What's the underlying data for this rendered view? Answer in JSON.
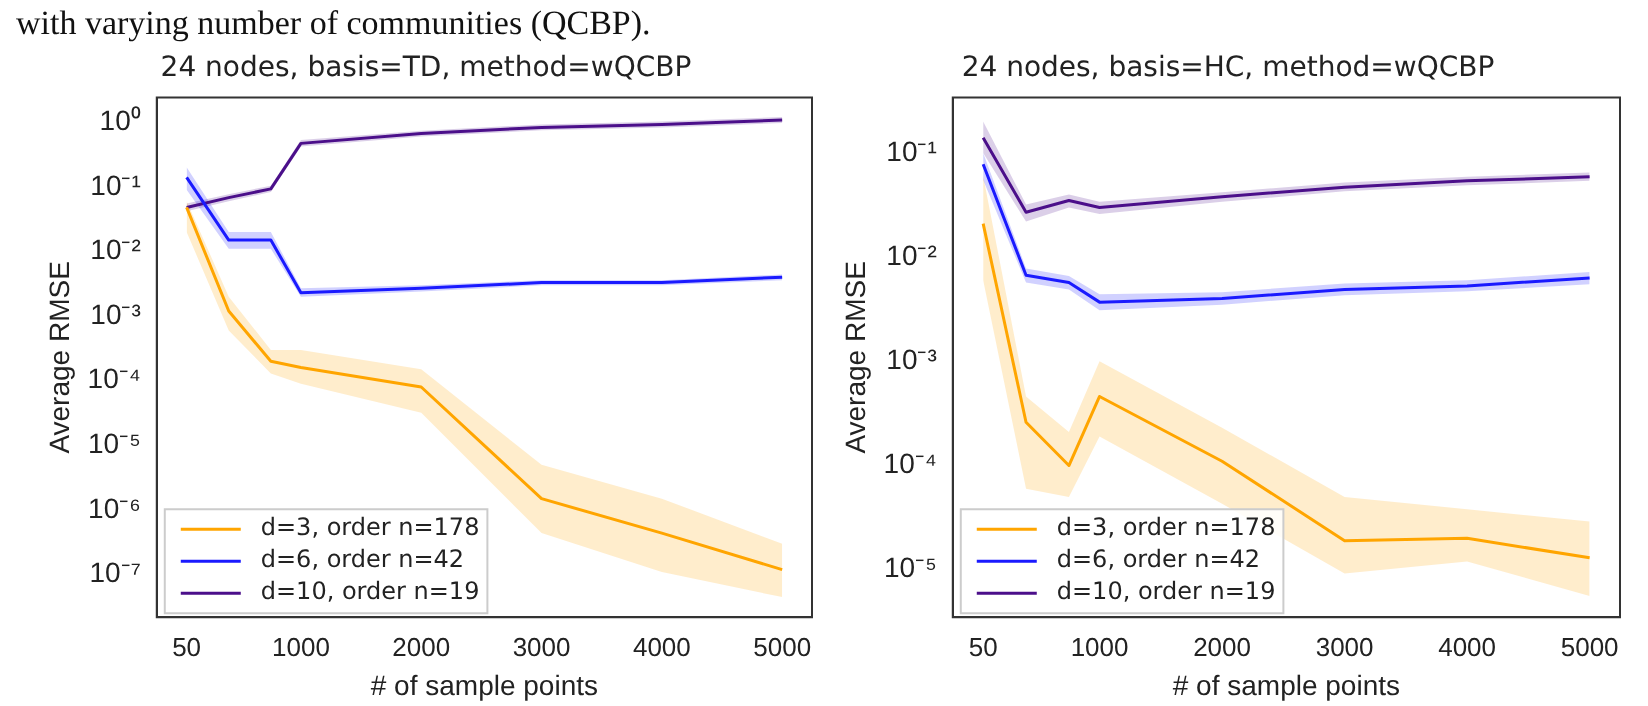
{
  "chart_data": [
    {
      "type": "line",
      "title": "24 nodes, basis=TD, method=wQCBP",
      "xlabel": "# of sample points",
      "ylabel": "Average RMSE",
      "annotations": [
        "with varying number of communities (QCBP)."
      ],
      "log": "y",
      "legend": "bottom left",
      "grid": false,
      "marker": "none",
      "line_style": "solid",
      "x": [
        50,
        400,
        750,
        1000,
        2000,
        3000,
        4000,
        5000
      ],
      "xlim": [
        -198,
        5248
      ],
      "xticks": [
        50,
        1000,
        2000,
        3000,
        4000,
        5000
      ],
      "ylim": [
        2.2e-08,
        2.4
      ],
      "yticks": [
        {
          "value": 1e-07,
          "label": "10⁻⁷"
        },
        {
          "value": 1e-06,
          "label": "10⁻⁶"
        },
        {
          "value": 1e-05,
          "label": "10⁻⁵"
        },
        {
          "value": 0.0001,
          "label": "10⁻⁴"
        },
        {
          "value": 0.001,
          "label": "10⁻³"
        },
        {
          "value": 0.01,
          "label": "10⁻²"
        },
        {
          "value": 0.1,
          "label": "10⁻¹"
        },
        {
          "value": 1,
          "label": "10⁰"
        }
      ],
      "series": [
        {
          "name": "d=3, order n=178",
          "color": "#ffa500",
          "values": [
            0.048,
            0.0012,
            0.0002,
            0.00016,
            8e-05,
            1.5e-06,
            4.4e-07,
            1.2e-07
          ],
          "lower": [
            0.02,
            0.0006,
            0.00013,
            9e-05,
            3.2e-05,
            4.4e-07,
            1.1e-07,
            4.5e-08
          ],
          "upper": [
            0.06,
            0.002,
            0.0003,
            0.0003,
            0.00015,
            5e-06,
            1.5e-06,
            3e-07
          ]
        },
        {
          "name": "d=6, order n=42",
          "color": "#1a1aff",
          "values": [
            0.14,
            0.015,
            0.015,
            0.0023,
            0.0027,
            0.0033,
            0.0033,
            0.004
          ],
          "lower": [
            0.09,
            0.011,
            0.011,
            0.002,
            0.0024,
            0.003,
            0.003,
            0.0036
          ],
          "upper": [
            0.2,
            0.02,
            0.02,
            0.0027,
            0.003,
            0.0036,
            0.0036,
            0.0044
          ]
        },
        {
          "name": "d=10, order n=19",
          "color": "#4b0f8a",
          "values": [
            0.048,
            0.068,
            0.093,
            0.47,
            0.67,
            0.83,
            0.92,
            1.08
          ],
          "lower": [
            0.042,
            0.06,
            0.083,
            0.42,
            0.6,
            0.75,
            0.83,
            0.97
          ],
          "upper": [
            0.055,
            0.077,
            0.104,
            0.53,
            0.74,
            0.92,
            1.02,
            1.2
          ]
        }
      ]
    },
    {
      "type": "line",
      "title": "24 nodes, basis=HC, method=wQCBP",
      "xlabel": "# of sample points",
      "ylabel": "Average RMSE",
      "log": "y",
      "legend": "bottom left",
      "grid": false,
      "marker": "none",
      "line_style": "solid",
      "x": [
        50,
        400,
        750,
        1000,
        2000,
        3000,
        4000,
        5000
      ],
      "xlim": [
        -198,
        5248
      ],
      "xticks": [
        50,
        1000,
        2000,
        3000,
        4000,
        5000
      ],
      "ylim": [
        3.5e-06,
        0.34
      ],
      "yticks": [
        {
          "value": 1e-05,
          "label": "10⁻⁵"
        },
        {
          "value": 0.0001,
          "label": "10⁻⁴"
        },
        {
          "value": 0.001,
          "label": "10⁻³"
        },
        {
          "value": 0.01,
          "label": "10⁻²"
        },
        {
          "value": 0.1,
          "label": "10⁻¹"
        }
      ],
      "series": [
        {
          "name": "d=3, order n=178",
          "color": "#ffa500",
          "values": [
            0.021,
            0.00026,
            0.0001,
            0.00046,
            0.00011,
            1.9e-05,
            2e-05,
            1.3e-05
          ],
          "lower": [
            0.006,
            6e-05,
            5e-05,
            0.00019,
            4.3e-05,
            9.2e-06,
            1.2e-05,
            5.6e-06
          ],
          "upper": [
            0.06,
            0.00046,
            0.00021,
            0.001,
            0.00023,
            5e-05,
            3.8e-05,
            2.9e-05
          ]
        },
        {
          "name": "d=6, order n=42",
          "color": "#1a1aff",
          "values": [
            0.078,
            0.0067,
            0.0057,
            0.0037,
            0.004,
            0.0049,
            0.0053,
            0.0063
          ],
          "lower": [
            0.055,
            0.0057,
            0.0049,
            0.0031,
            0.0035,
            0.0043,
            0.0047,
            0.0055
          ],
          "upper": [
            0.1,
            0.0078,
            0.0066,
            0.0044,
            0.0046,
            0.0056,
            0.006,
            0.0072
          ]
        },
        {
          "name": "d=10, order n=19",
          "color": "#4b0f8a",
          "values": [
            0.14,
            0.027,
            0.035,
            0.03,
            0.038,
            0.047,
            0.054,
            0.059
          ],
          "lower": [
            0.1,
            0.022,
            0.03,
            0.026,
            0.034,
            0.043,
            0.049,
            0.054
          ],
          "upper": [
            0.2,
            0.032,
            0.04,
            0.034,
            0.042,
            0.052,
            0.059,
            0.065
          ]
        }
      ]
    }
  ]
}
